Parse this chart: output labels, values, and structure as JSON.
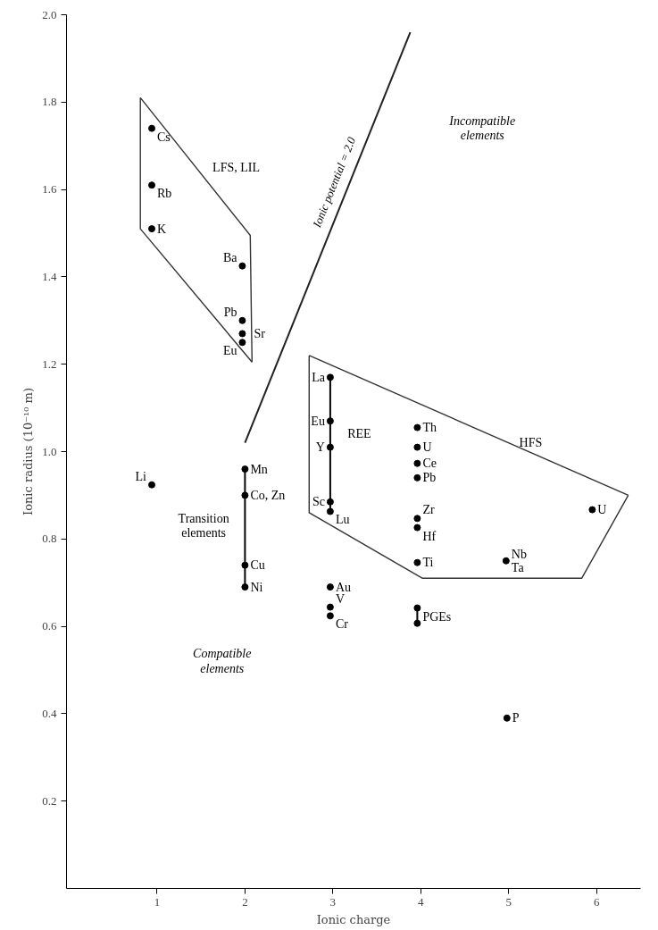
{
  "chart_data": {
    "type": "scatter",
    "xlabel": "Ionic charge",
    "ylabel": "Ionic radius (10⁻¹⁰ m)",
    "xlim": [
      -0.03,
      6.5
    ],
    "ylim": [
      0,
      2.0
    ],
    "xticks": [
      1,
      2,
      3,
      4,
      5,
      6
    ],
    "yticks": [
      0.2,
      0.4,
      0.6,
      0.8,
      {
        "value": 1.0,
        "label": "1.0"
      },
      1.2,
      1.4,
      1.6,
      1.8,
      {
        "value": 2.0,
        "label": "2.0"
      }
    ],
    "grid": false,
    "marker": "circle",
    "series": [
      {
        "type": "line",
        "marker": "none",
        "color": "#333333",
        "x": [
          0.81,
          2.06,
          2.08
        ],
        "values": [
          1.81,
          1.495,
          1.205
        ]
      },
      {
        "type": "line",
        "marker": "none",
        "color": "#333333",
        "x": [
          0.81,
          0.81,
          2.08
        ],
        "values": [
          1.81,
          1.51,
          1.205
        ]
      },
      {
        "type": "line",
        "marker": "none",
        "color": "#333333",
        "x": [
          2.73,
          6.36
        ],
        "values": [
          1.22,
          0.9
        ]
      },
      {
        "type": "line",
        "marker": "none",
        "color": "#333333",
        "x": [
          2.73,
          2.73,
          4.02,
          5.83,
          6.36
        ],
        "values": [
          1.22,
          0.86,
          0.71,
          0.71,
          0.9
        ]
      },
      {
        "type": "line",
        "marker": "none",
        "name": "Ionic potential = 2.0",
        "color": "#222222",
        "x": [
          2.0,
          3.88
        ],
        "values": [
          1.02,
          1.96
        ]
      },
      {
        "color": "#000000",
        "x": [
          0.94,
          0.94,
          0.94,
          1.97,
          1.97,
          1.97,
          1.97
        ],
        "values": [
          1.74,
          1.61,
          1.51,
          1.425,
          1.3,
          1.27,
          1.25
        ],
        "value_labels": [
          "Cs",
          "Rb",
          "K",
          "Ba",
          "Pb",
          "Sr",
          "Eu"
        ]
      },
      {
        "color": "#000000",
        "x": [
          0.94
        ],
        "values": [
          0.924
        ],
        "value_labels": [
          "Li"
        ]
      },
      {
        "type": "line",
        "color": "#000000",
        "x": [
          2.0,
          2.0,
          2.0,
          2.0
        ],
        "values": [
          0.96,
          0.9,
          0.74,
          0.69
        ],
        "value_labels": [
          "Mn",
          "Co, Zn",
          "Cu",
          "Ni"
        ]
      },
      {
        "type": "line",
        "color": "#000000",
        "x": [
          2.97,
          2.97,
          2.97,
          2.97,
          2.97
        ],
        "values": [
          1.17,
          1.07,
          1.01,
          0.885,
          0.863
        ],
        "value_labels": [
          "La",
          "Eu",
          "Y",
          "Sc",
          "Lu"
        ]
      },
      {
        "color": "#000000",
        "x": [
          3.96,
          3.96,
          3.96,
          3.96,
          3.96,
          3.96,
          3.96,
          4.97,
          5.95
        ],
        "values": [
          1.055,
          1.01,
          0.973,
          0.94,
          0.847,
          0.826,
          0.746,
          0.75,
          0.867
        ],
        "value_labels": [
          "Th",
          "U",
          "Ce",
          "Pb",
          "Zr",
          "Hf",
          "Ti",
          "Nb\nTa",
          "U"
        ]
      },
      {
        "color": "#000000",
        "x": [
          2.97,
          2.97,
          2.97
        ],
        "values": [
          0.69,
          0.644,
          0.624
        ],
        "value_labels": [
          "Au",
          "V",
          "Cr"
        ]
      },
      {
        "type": "line",
        "color": "#000000",
        "x": [
          3.96,
          3.96
        ],
        "values": [
          0.642,
          0.607
        ],
        "value_labels": [
          "PGEs",
          null
        ]
      },
      {
        "color": "#000000",
        "x": [
          4.98
        ],
        "values": [
          0.39
        ],
        "value_labels": [
          "P"
        ]
      }
    ],
    "annotations": [
      "LFS, LIL",
      "REE",
      "HFS",
      "Incompatible\nelements",
      "Transition\nelements",
      "Compatible\nelements"
    ]
  }
}
